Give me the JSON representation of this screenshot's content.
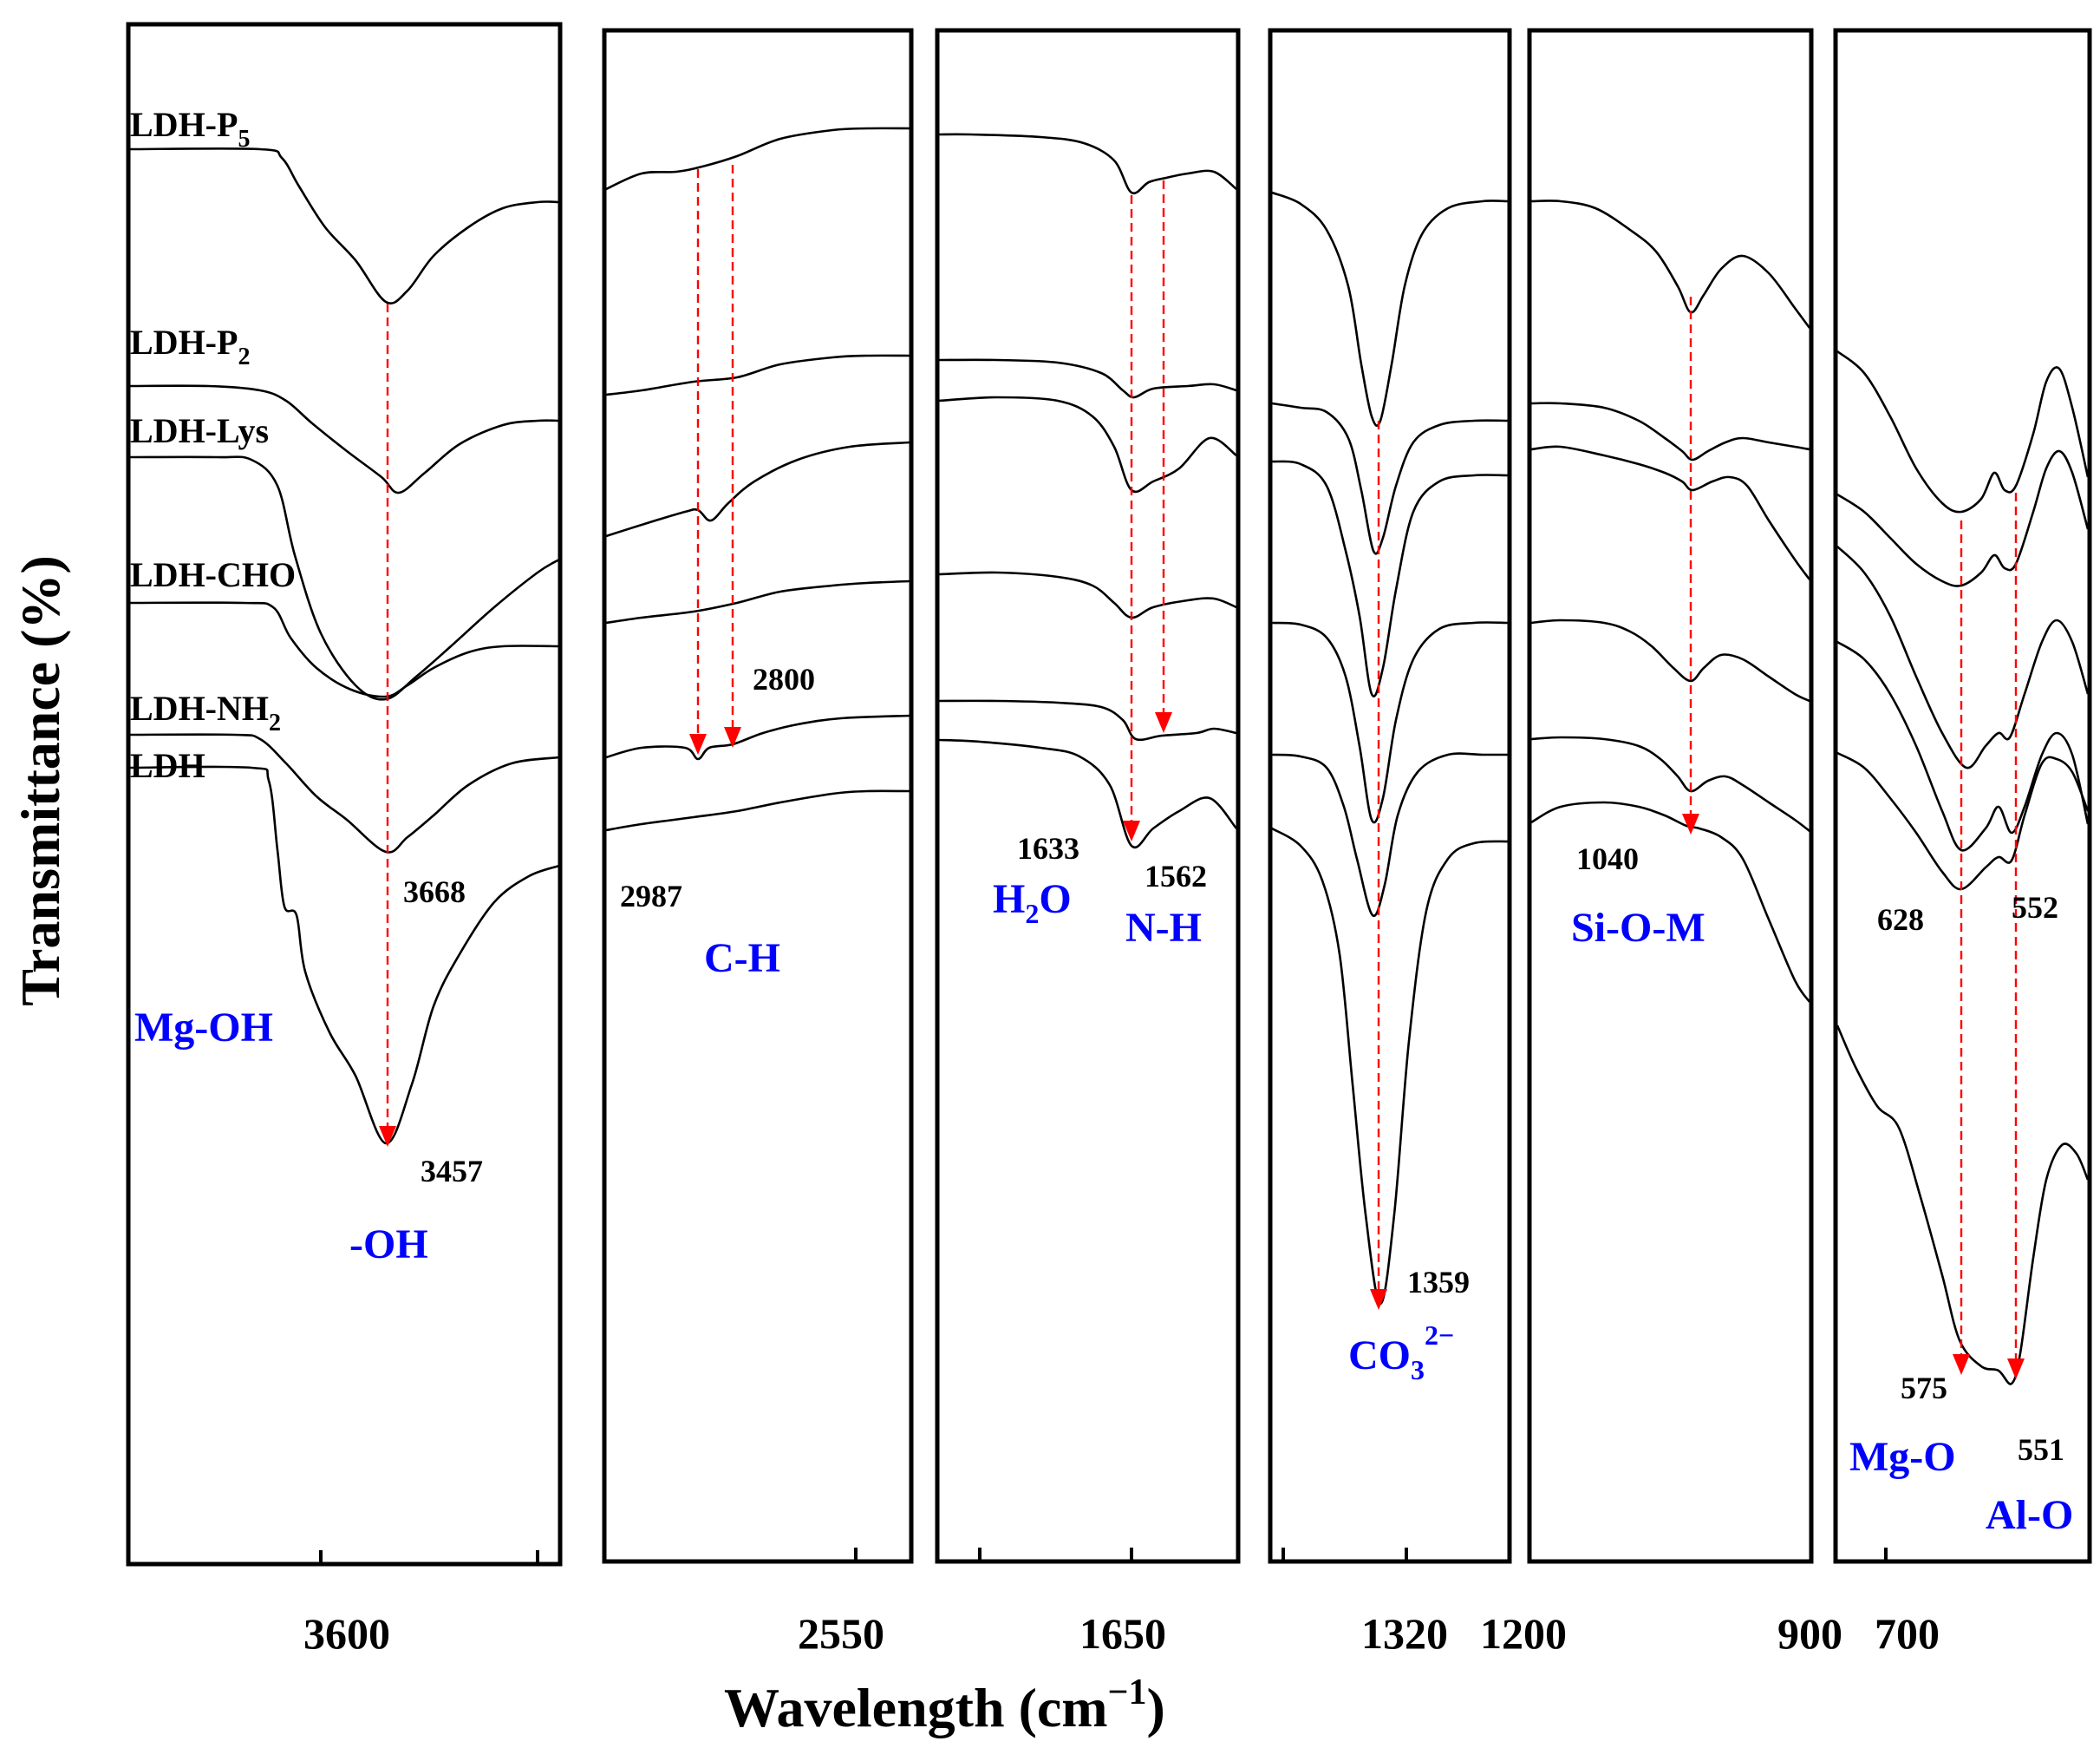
{
  "chart_data": {
    "type": "line",
    "title": "",
    "xlabel": "Wavelength (cm",
    "xlabel_sup": "−1",
    "xlabel_close": ")",
    "ylabel": "Transmittance (%)",
    "series": [
      {
        "name": "LDH-P",
        "sub": "5"
      },
      {
        "name": "LDH-P",
        "sub": "2"
      },
      {
        "name": "LDH-Lys",
        "sub": ""
      },
      {
        "name": "LDH-CHO",
        "sub": ""
      },
      {
        "name": "LDH-NH",
        "sub": "2"
      },
      {
        "name": "LDH",
        "sub": ""
      }
    ],
    "panels": [
      {
        "tick_labels": [
          "3600"
        ],
        "peaks": [
          "3668",
          "3457"
        ],
        "groups": [
          {
            "text": "Mg-OH",
            "sub": "",
            "sup": ""
          },
          {
            "text": "-OH",
            "sub": "",
            "sup": ""
          }
        ]
      },
      {
        "tick_labels": [
          "2550"
        ],
        "peaks": [
          "2987",
          "2800"
        ],
        "groups": [
          {
            "text": "C-H",
            "sub": "",
            "sup": ""
          }
        ]
      },
      {
        "tick_labels": [
          "1650"
        ],
        "peaks": [
          "1633",
          "1562"
        ],
        "groups": [
          {
            "text": "H",
            "sub": "2",
            "after": "O"
          },
          {
            "text": "N-H",
            "sub": "",
            "sup": ""
          }
        ]
      },
      {
        "tick_labels": [
          "1320"
        ],
        "peaks": [
          "1359"
        ],
        "groups": [
          {
            "text": "CO",
            "sub": "3",
            "sup": "2−"
          }
        ]
      },
      {
        "tick_labels": [
          "1200",
          "900"
        ],
        "peaks": [
          "1040"
        ],
        "groups": [
          {
            "text": "Si-O-M",
            "sub": "",
            "sup": ""
          }
        ]
      },
      {
        "tick_labels": [
          "700"
        ],
        "peaks": [
          "628",
          "552",
          "575",
          "551"
        ],
        "groups": [
          {
            "text": "Mg-O",
            "sub": "",
            "sup": ""
          },
          {
            "text": "Al-O",
            "sub": "",
            "sup": ""
          }
        ]
      }
    ],
    "colors": {
      "curve": "#000000",
      "marker": "#ff0000",
      "group_label": "#0000ff"
    },
    "grid": false,
    "legend": "inline labels at left of first panel"
  }
}
